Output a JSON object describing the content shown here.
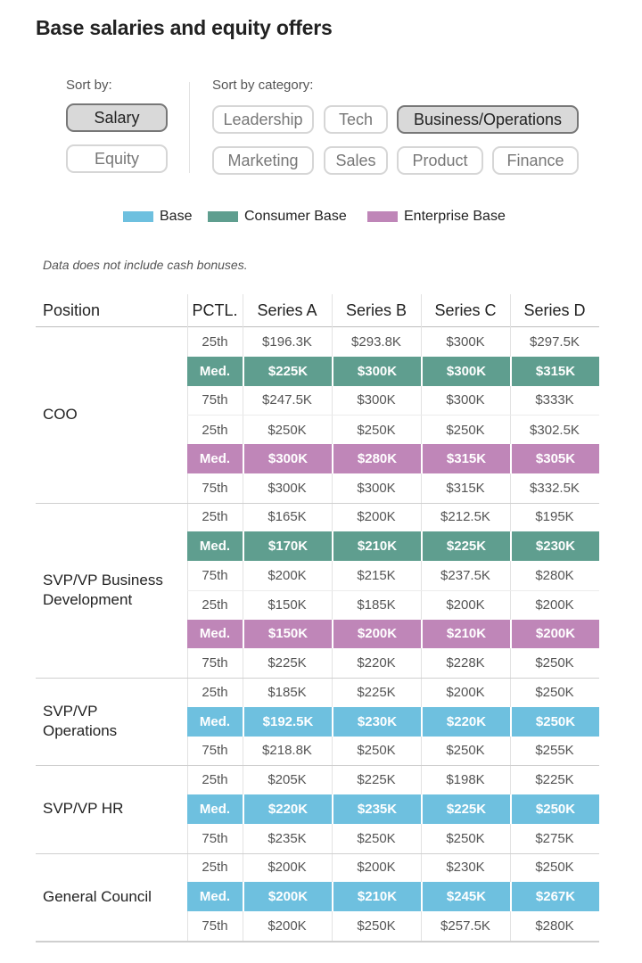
{
  "title": "Base salaries and equity offers",
  "sort": {
    "label": "Sort by:",
    "options": [
      {
        "label": "Salary",
        "active": true
      },
      {
        "label": "Equity",
        "active": false
      }
    ]
  },
  "category": {
    "label": "Sort by category:",
    "options": [
      {
        "label": "Leadership",
        "active": false
      },
      {
        "label": "Tech",
        "active": false
      },
      {
        "label": "Business/Operations",
        "active": true
      },
      {
        "label": "Marketing",
        "active": false
      },
      {
        "label": "Sales",
        "active": false
      },
      {
        "label": "Product",
        "active": false
      },
      {
        "label": "Finance",
        "active": false
      }
    ]
  },
  "colors": {
    "base": "#6ec0df",
    "consumer": "#5f9e8f",
    "enterprise": "#bf86b8"
  },
  "note": "Data does not include cash bonuses.",
  "chart_data": {
    "type": "table",
    "legend": [
      {
        "name": "Base",
        "key": "base"
      },
      {
        "name": "Consumer Base",
        "key": "consumer"
      },
      {
        "name": "Enterprise Base",
        "key": "enterprise"
      }
    ],
    "columns": [
      "Position",
      "PCTL.",
      "Series A",
      "Series B",
      "Series C",
      "Series D"
    ],
    "groups": [
      {
        "position": "COO",
        "rows": [
          {
            "pctl": "25th",
            "values": [
              "$196.3K",
              "$293.8K",
              "$300K",
              "$297.5K"
            ]
          },
          {
            "pctl": "Med.",
            "highlight": "consumer",
            "values": [
              "$225K",
              "$300K",
              "$300K",
              "$315K"
            ]
          },
          {
            "pctl": "75th",
            "values": [
              "$247.5K",
              "$300K",
              "$300K",
              "$333K"
            ]
          },
          {
            "pctl": "25th",
            "values": [
              "$250K",
              "$250K",
              "$250K",
              "$302.5K"
            ]
          },
          {
            "pctl": "Med.",
            "highlight": "enterprise",
            "values": [
              "$300K",
              "$280K",
              "$315K",
              "$305K"
            ]
          },
          {
            "pctl": "75th",
            "values": [
              "$300K",
              "$300K",
              "$315K",
              "$332.5K"
            ]
          }
        ]
      },
      {
        "position": "SVP/VP Business\nDevelopment",
        "rows": [
          {
            "pctl": "25th",
            "values": [
              "$165K",
              "$200K",
              "$212.5K",
              "$195K"
            ]
          },
          {
            "pctl": "Med.",
            "highlight": "consumer",
            "values": [
              "$170K",
              "$210K",
              "$225K",
              "$230K"
            ]
          },
          {
            "pctl": "75th",
            "values": [
              "$200K",
              "$215K",
              "$237.5K",
              "$280K"
            ]
          },
          {
            "pctl": "25th",
            "values": [
              "$150K",
              "$185K",
              "$200K",
              "$200K"
            ]
          },
          {
            "pctl": "Med.",
            "highlight": "enterprise",
            "values": [
              "$150K",
              "$200K",
              "$210K",
              "$200K"
            ]
          },
          {
            "pctl": "75th",
            "values": [
              "$225K",
              "$220K",
              "$228K",
              "$250K"
            ]
          }
        ]
      },
      {
        "position": "SVP/VP\nOperations",
        "rows": [
          {
            "pctl": "25th",
            "values": [
              "$185K",
              "$225K",
              "$200K",
              "$250K"
            ]
          },
          {
            "pctl": "Med.",
            "highlight": "base",
            "values": [
              "$192.5K",
              "$230K",
              "$220K",
              "$250K"
            ]
          },
          {
            "pctl": "75th",
            "values": [
              "$218.8K",
              "$250K",
              "$250K",
              "$255K"
            ]
          }
        ]
      },
      {
        "position": "SVP/VP HR",
        "rows": [
          {
            "pctl": "25th",
            "values": [
              "$205K",
              "$225K",
              "$198K",
              "$225K"
            ]
          },
          {
            "pctl": "Med.",
            "highlight": "base",
            "values": [
              "$220K",
              "$235K",
              "$225K",
              "$250K"
            ]
          },
          {
            "pctl": "75th",
            "values": [
              "$235K",
              "$250K",
              "$250K",
              "$275K"
            ]
          }
        ]
      },
      {
        "position": "General Council",
        "rows": [
          {
            "pctl": "25th",
            "values": [
              "$200K",
              "$200K",
              "$230K",
              "$250K"
            ]
          },
          {
            "pctl": "Med.",
            "highlight": "base",
            "values": [
              "$200K",
              "$210K",
              "$245K",
              "$267K"
            ]
          },
          {
            "pctl": "75th",
            "values": [
              "$200K",
              "$250K",
              "$257.5K",
              "$280K"
            ]
          }
        ]
      }
    ]
  }
}
